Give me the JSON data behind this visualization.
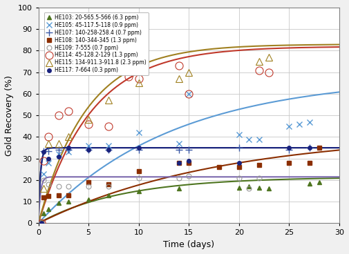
{
  "xlabel": "Time (days)",
  "ylabel": "Gold Recovery (%)",
  "xlim": [
    0,
    30
  ],
  "ylim": [
    0,
    100
  ],
  "xticks": [
    0,
    5,
    10,
    15,
    20,
    25,
    30
  ],
  "yticks": [
    0,
    10,
    20,
    30,
    40,
    50,
    60,
    70,
    80,
    90,
    100
  ],
  "series": [
    {
      "label": "HE103: 20-565.5-566 (6.3 ppm)",
      "color": "#4e7520",
      "line_color": "#4e7520",
      "marker": "^",
      "filled": true,
      "ms": 5,
      "data_x": [
        0.3,
        0.5,
        1,
        2,
        3,
        5,
        7,
        10,
        14,
        20,
        21,
        22,
        23,
        27,
        28
      ],
      "data_y": [
        0,
        4.5,
        6.5,
        9.5,
        10,
        11,
        13,
        15,
        16,
        16.5,
        17,
        16.5,
        16,
        18.5,
        19
      ],
      "A": 21.5,
      "k": 0.12
    },
    {
      "label": "HE105: 45-117.5-118 (0.9 ppm)",
      "color": "#5b9bd5",
      "line_color": "#5b9bd5",
      "marker": "x",
      "filled": true,
      "ms": 6,
      "data_x": [
        0.3,
        0.5,
        1,
        2,
        3,
        5,
        7,
        10,
        14,
        15,
        20,
        21,
        22,
        25,
        26,
        27
      ],
      "data_y": [
        0,
        23,
        28,
        32,
        33,
        36,
        36,
        42,
        37,
        60,
        41,
        39,
        39,
        45,
        46,
        47
      ],
      "A": 68,
      "k": 0.075
    },
    {
      "label": "HE107: 140-258-258.4 (0.7 ppm)",
      "color": "#3c5aa6",
      "line_color": "#1a3370",
      "marker": "+",
      "filled": true,
      "ms": 7,
      "data_x": [
        0.3,
        0.5,
        1,
        2,
        3,
        5,
        7,
        10,
        14,
        15,
        20,
        25,
        27
      ],
      "data_y": [
        0,
        33.5,
        33.5,
        34,
        34,
        34,
        34,
        34,
        34,
        34,
        35,
        34,
        35
      ],
      "A": 35.0,
      "k": 5.0
    },
    {
      "label": "HE108: 140-344-345 (1.3 ppm)",
      "color": "#8b2e00",
      "line_color": "#8b2e00",
      "marker": "s",
      "filled": true,
      "ms": 5,
      "data_x": [
        0.3,
        0.5,
        1,
        2,
        3,
        5,
        7,
        10,
        14,
        15,
        18,
        20,
        22,
        25,
        27,
        28
      ],
      "data_y": [
        0,
        12,
        12.5,
        13,
        13,
        19,
        18,
        24,
        28,
        28,
        26,
        26,
        27,
        28,
        28,
        35
      ],
      "A": 42,
      "k": 0.055
    },
    {
      "label": "HE109: 7-555 (0.7 ppm)",
      "color": "#999999",
      "line_color": "#7b68ae",
      "marker": "o",
      "filled": false,
      "ms": 5,
      "data_x": [
        0.3,
        0.5,
        1,
        2,
        3,
        5,
        7,
        10,
        14,
        15,
        20,
        21,
        22
      ],
      "data_y": [
        0,
        20,
        18,
        17,
        17,
        17,
        17,
        21,
        21,
        22,
        21,
        16,
        21
      ],
      "A": 21.5,
      "k": 5.0
    },
    {
      "label": "HE114: 45-128.2-129 (1.3 ppm)",
      "color": "#c0392b",
      "line_color": "#c0392b",
      "marker": "o",
      "filled": false,
      "ms": 8,
      "data_x": [
        0.3,
        0.5,
        1,
        2,
        3,
        5,
        7,
        9,
        10,
        14,
        15,
        22,
        23
      ],
      "data_y": [
        0,
        29,
        40,
        50,
        52,
        46,
        45,
        68,
        67,
        73,
        60,
        71,
        70
      ],
      "A": 82,
      "k": 0.19
    },
    {
      "label": "HE115: 134-911.3-911.8 (2.3 ppm)",
      "color": "#a08020",
      "line_color": "#a08020",
      "marker": "^",
      "filled": false,
      "ms": 7,
      "data_x": [
        0.3,
        0.5,
        1,
        2,
        3,
        5,
        7,
        10,
        14,
        15,
        22,
        23
      ],
      "data_y": [
        0,
        16,
        37,
        37,
        40,
        48,
        57,
        65,
        67,
        70,
        75,
        77
      ],
      "A": 83,
      "k": 0.21
    },
    {
      "label": "HE117: 7-664 (0.3 ppm)",
      "color": "#1a237e",
      "line_color": "#1a237e",
      "marker": ".",
      "filled": true,
      "ms": 8,
      "data_x": [
        0.3,
        0.5,
        1,
        2,
        3,
        5,
        7,
        10,
        14,
        15,
        20,
        25,
        27
      ],
      "data_y": [
        0,
        33,
        30,
        31,
        35,
        34,
        34,
        35,
        28,
        29,
        28,
        35,
        35
      ],
      "A": 35.0,
      "k": 5.0
    }
  ],
  "background_color": "#f0f0f0",
  "plot_bg_color": "#ffffff",
  "grid_color": "#c8c8c8"
}
